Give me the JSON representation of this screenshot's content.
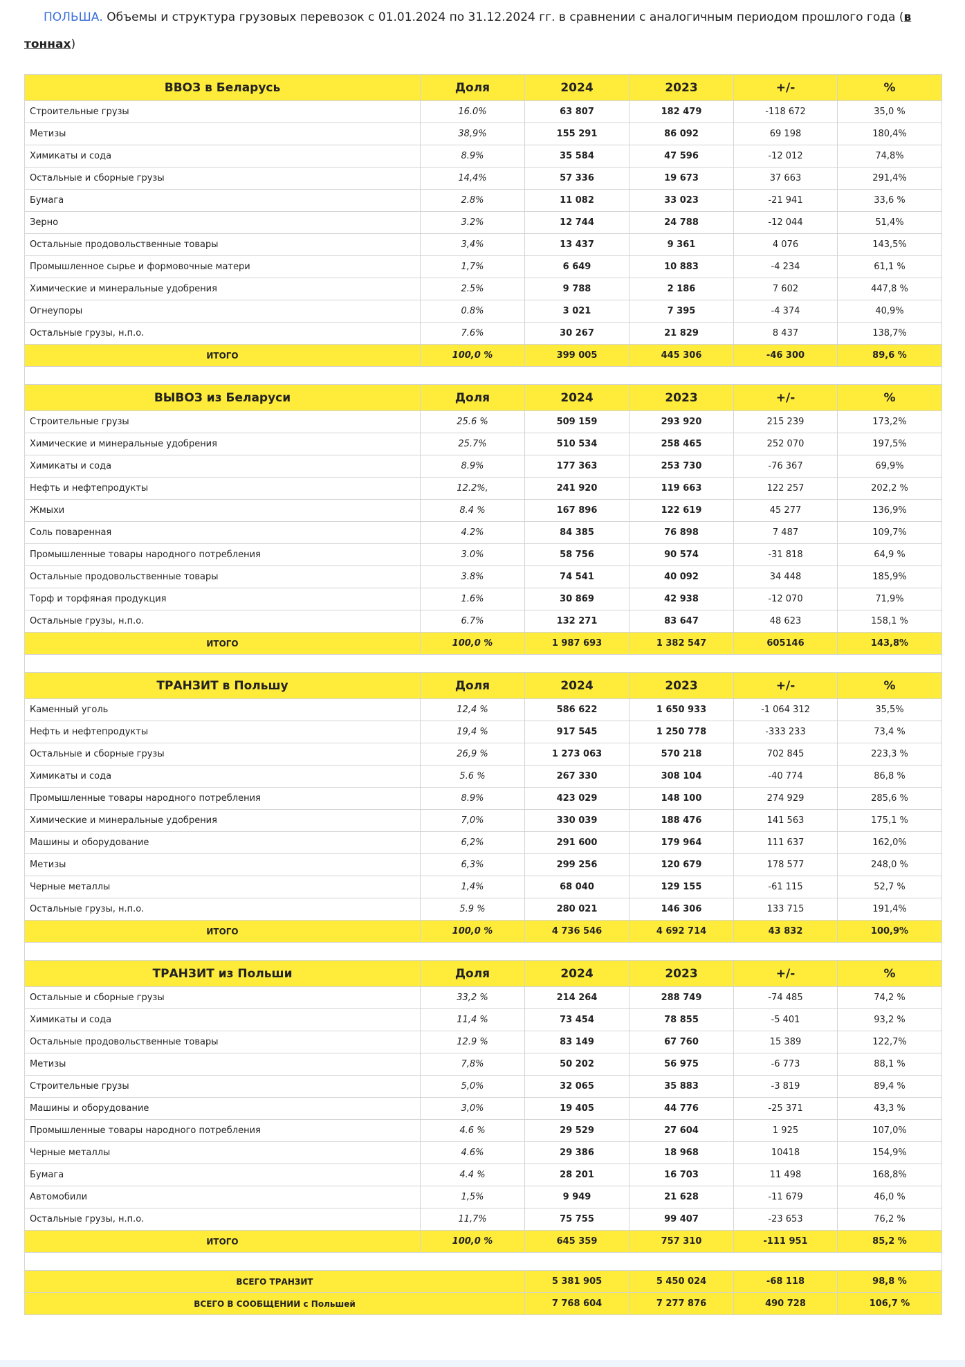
{
  "title": {
    "country": "ПОЛЬША.",
    "text": "Объемы и структура грузовых перевозок с 01.01.2024 по 31.12.2024 гг. в сравнении с аналогичным периодом прошлого года (",
    "link": "в тоннах",
    "close": ")"
  },
  "tables": [
    {
      "header": [
        "ВВОЗ в Беларусь",
        "Доля",
        "2024",
        "2023",
        "+/-",
        "%"
      ],
      "rows": [
        [
          "Строительные грузы",
          "16.0%",
          "63 807",
          "182 479",
          "-118 672",
          "35,0 %"
        ],
        [
          "Метизы",
          "38,9%",
          "155 291",
          "86 092",
          "69 198",
          "180,4%"
        ],
        [
          "Химикаты и сода",
          "8.9%",
          "35 584",
          "47 596",
          "-12 012",
          "74,8%"
        ],
        [
          "Остальные и сборные грузы",
          "14,4%",
          "57 336",
          "19 673",
          "37 663",
          "291,4%"
        ],
        [
          "Бумага",
          "2.8%",
          "11 082",
          "33 023",
          "-21 941",
          "33,6 %"
        ],
        [
          "Зерно",
          "3.2%",
          "12 744",
          "24 788",
          "-12 044",
          "51,4%"
        ],
        [
          "Остальные продовольственные товары",
          "3,4%",
          "13 437",
          "9 361",
          "4 076",
          "143,5%"
        ],
        [
          "Промышленное сырье и формовочные матери",
          "1,7%",
          "6 649",
          "10 883",
          "-4 234",
          "61,1 %"
        ],
        [
          "Химические и минеральные удобрения",
          "2.5%",
          "9 788",
          "2 186",
          "7 602",
          "447,8 %"
        ],
        [
          "Огнеупоры",
          "0.8%",
          "3 021",
          "7 395",
          "-4 374",
          "40,9%"
        ],
        [
          "Остальные грузы, н.п.о.",
          "7.6%",
          "30 267",
          "21 829",
          "8 437",
          "138,7%"
        ]
      ],
      "total": [
        "ИТОГО",
        "100,0 %",
        "399 005",
        "445 306",
        "-46 300",
        "89,6 %"
      ]
    },
    {
      "header": [
        "ВЫВОЗ из Беларуси",
        "Доля",
        "2024",
        "2023",
        "+/-",
        "%"
      ],
      "rows": [
        [
          "Строительные грузы",
          "25.6 %",
          "509 159",
          "293 920",
          "215 239",
          "173,2%"
        ],
        [
          "Химические и минеральные удобрения",
          "25.7%",
          "510 534",
          "258 465",
          "252 070",
          "197,5%"
        ],
        [
          "Химикаты и сода",
          "8.9%",
          "177 363",
          "253 730",
          "-76 367",
          "69,9%"
        ],
        [
          "Нефть и нефтепродукты",
          "12.2%,",
          "241 920",
          "119 663",
          "122 257",
          "202,2 %"
        ],
        [
          "Жмыхи",
          "8.4 %",
          "167 896",
          "122 619",
          "45 277",
          "136,9%"
        ],
        [
          "Соль поваренная",
          "4.2%",
          "84 385",
          "76 898",
          "7 487",
          "109,7%"
        ],
        [
          "Промышленные товары народного потребления",
          "3.0%",
          "58 756",
          "90 574",
          "-31 818",
          "64,9 %"
        ],
        [
          "Остальные продовольственные товары",
          "3.8%",
          "74 541",
          "40 092",
          "34 448",
          "185,9%"
        ],
        [
          "Торф и торфяная продукция",
          "1.6%",
          "30 869",
          "42 938",
          "-12 070",
          "71,9%"
        ],
        [
          "Остальные грузы, н.п.о.",
          "6.7%",
          "132 271",
          "83 647",
          "48 623",
          "158,1 %"
        ]
      ],
      "total": [
        "ИТОГО",
        "100,0 %",
        "1 987 693",
        "1 382 547",
        "605146",
        "143,8%"
      ]
    },
    {
      "header": [
        "ТРАНЗИТ в Польшу",
        "Доля",
        "2024",
        "2023",
        "+/-",
        "%"
      ],
      "rows": [
        [
          "Каменный уголь",
          "12,4 %",
          "586 622",
          "1 650 933",
          "-1 064 312",
          "35,5%"
        ],
        [
          "Нефть и нефтепродукты",
          "19,4 %",
          "917 545",
          "1 250 778",
          "-333 233",
          "73,4 %"
        ],
        [
          "Остальные и сборные грузы",
          "26,9 %",
          "1 273 063",
          "570 218",
          "702 845",
          "223,3 %"
        ],
        [
          "Химикаты и сода",
          "5.6 %",
          "267 330",
          "308 104",
          "-40 774",
          "86,8 %"
        ],
        [
          "Промышленные товары народного потребления",
          "8.9%",
          "423 029",
          "148 100",
          "274 929",
          "285,6 %"
        ],
        [
          "Химические и минеральные удобрения",
          "7,0%",
          "330 039",
          "188 476",
          "141 563",
          "175,1 %"
        ],
        [
          "Машины и оборудование",
          "6,2%",
          "291 600",
          "179 964",
          "111 637",
          "162,0%"
        ],
        [
          "Метизы",
          "6,3%",
          "299 256",
          "120 679",
          "178 577",
          "248,0 %"
        ],
        [
          "Черные металлы",
          "1,4%",
          "68 040",
          "129 155",
          "-61 115",
          "52,7 %"
        ],
        [
          "Остальные грузы, н.п.о.",
          "5.9 %",
          "280 021",
          "146 306",
          "133 715",
          "191,4%"
        ]
      ],
      "total": [
        "ИТОГО",
        "100,0 %",
        "4 736 546",
        "4 692 714",
        "43 832",
        "100,9%"
      ]
    },
    {
      "header": [
        "ТРАНЗИТ из Польши",
        "Доля",
        "2024",
        "2023",
        "+/-",
        "%"
      ],
      "rows": [
        [
          "Остальные и сборные грузы",
          "33,2 %",
          "214 264",
          "288 749",
          "-74 485",
          "74,2 %"
        ],
        [
          "Химикаты и сода",
          "11,4 %",
          "73 454",
          "78 855",
          "-5 401",
          "93,2 %"
        ],
        [
          "Остальные продовольственные товары",
          "12.9 %",
          "83 149",
          "67 760",
          "15 389",
          "122,7%"
        ],
        [
          "Метизы",
          "7,8%",
          "50 202",
          "56 975",
          "-6 773",
          "88,1 %"
        ],
        [
          "Строительные грузы",
          "5,0%",
          "32 065",
          "35 883",
          "-3 819",
          "89,4 %"
        ],
        [
          "Машины и оборудование",
          "3,0%",
          "19 405",
          "44 776",
          "-25 371",
          "43,3 %"
        ],
        [
          "Промышленные товары народного потребления",
          "4.6 %",
          "29 529",
          "27 604",
          "1 925",
          "107,0%"
        ],
        [
          "Черные металлы",
          "4.6%",
          "29 386",
          "18 968",
          "10418",
          "154,9%"
        ],
        [
          "Бумага",
          "4.4 %",
          "28 201",
          "16 703",
          "11 498",
          "168,8%"
        ],
        [
          "Автомобили",
          "1,5%",
          "9 949",
          "21 628",
          "-11 679",
          "46,0 %"
        ],
        [
          "Остальные грузы, н.п.о.",
          "11,7%",
          "75 755",
          "99 407",
          "-23 653",
          "76,2 %"
        ]
      ],
      "total": [
        "ИТОГО",
        "100,0 %",
        "645 359",
        "757 310",
        "-111 951",
        "85,2 %"
      ]
    }
  ],
  "summary": [
    [
      "ВСЕГО ТРАНЗИТ",
      "5 381 905",
      "5 450 024",
      "-68 118",
      "98,8 %"
    ],
    [
      "ВСЕГО В СООБЩЕНИИ с Польшей",
      "7 768 604",
      "7 277 876",
      "490 728",
      "106,7 %"
    ]
  ]
}
